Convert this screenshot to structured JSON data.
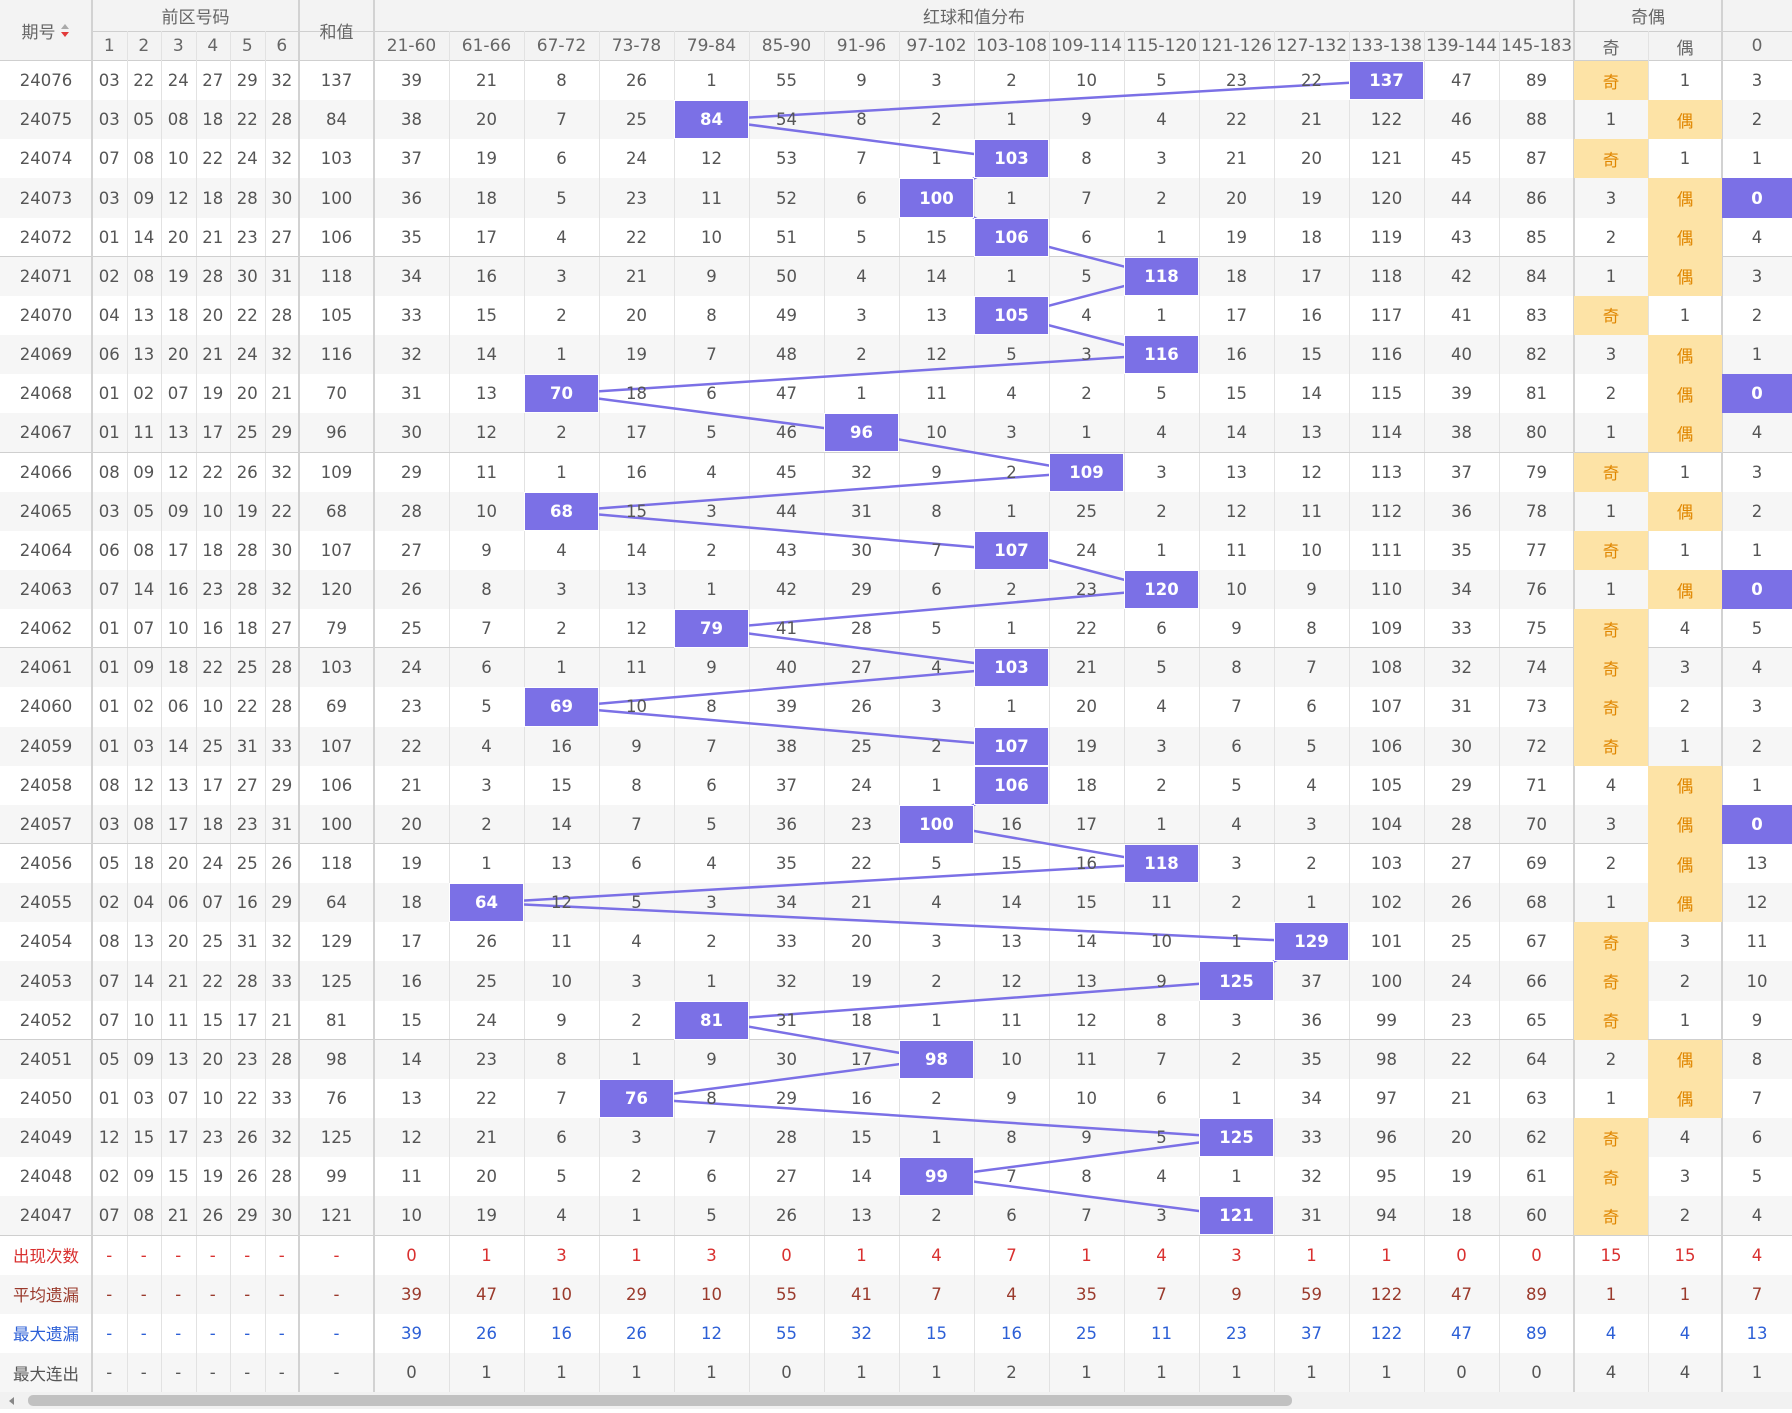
{
  "header": {
    "issue": "期号",
    "front": "前区号码",
    "front_cols": [
      "1",
      "2",
      "3",
      "4",
      "5",
      "6"
    ],
    "sum": "和值",
    "dist": "红球和值分布",
    "ranges": [
      "21-60",
      "61-66",
      "67-72",
      "73-78",
      "79-84",
      "85-90",
      "91-96",
      "97-102",
      "103-108",
      "109-114",
      "115-120",
      "121-126",
      "127-132",
      "133-138",
      "139-144",
      "145-183"
    ],
    "parity": "奇偶",
    "parity_cols": [
      "奇",
      "偶"
    ],
    "last_col": "0"
  },
  "rows": [
    {
      "issue": "24076",
      "balls": [
        "03",
        "22",
        "24",
        "27",
        "29",
        "32"
      ],
      "sum": "137",
      "dist": [
        "39",
        "21",
        "8",
        "26",
        "1",
        "55",
        "9",
        "3",
        "2",
        "10",
        "5",
        "23",
        "22",
        "137",
        "47",
        "89"
      ],
      "parity": [
        "奇",
        "1"
      ],
      "last": "3"
    },
    {
      "issue": "24075",
      "balls": [
        "03",
        "05",
        "08",
        "18",
        "22",
        "28"
      ],
      "sum": "84",
      "dist": [
        "38",
        "20",
        "7",
        "25",
        "84",
        "54",
        "8",
        "2",
        "1",
        "9",
        "4",
        "22",
        "21",
        "122",
        "46",
        "88"
      ],
      "parity": [
        "1",
        "偶"
      ],
      "last": "2"
    },
    {
      "issue": "24074",
      "balls": [
        "07",
        "08",
        "10",
        "22",
        "24",
        "32"
      ],
      "sum": "103",
      "dist": [
        "37",
        "19",
        "6",
        "24",
        "12",
        "53",
        "7",
        "1",
        "103",
        "8",
        "3",
        "21",
        "20",
        "121",
        "45",
        "87"
      ],
      "parity": [
        "奇",
        "1"
      ],
      "last": "1"
    },
    {
      "issue": "24073",
      "balls": [
        "03",
        "09",
        "12",
        "18",
        "28",
        "30"
      ],
      "sum": "100",
      "dist": [
        "36",
        "18",
        "5",
        "23",
        "11",
        "52",
        "6",
        "100",
        "1",
        "7",
        "2",
        "20",
        "19",
        "120",
        "44",
        "86"
      ],
      "parity": [
        "3",
        "偶"
      ],
      "last": "0"
    },
    {
      "issue": "24072",
      "balls": [
        "01",
        "14",
        "20",
        "21",
        "23",
        "27"
      ],
      "sum": "106",
      "dist": [
        "35",
        "17",
        "4",
        "22",
        "10",
        "51",
        "5",
        "15",
        "106",
        "6",
        "1",
        "19",
        "18",
        "119",
        "43",
        "85"
      ],
      "parity": [
        "2",
        "偶"
      ],
      "last": "4"
    },
    {
      "issue": "24071",
      "balls": [
        "02",
        "08",
        "19",
        "28",
        "30",
        "31"
      ],
      "sum": "118",
      "dist": [
        "34",
        "16",
        "3",
        "21",
        "9",
        "50",
        "4",
        "14",
        "1",
        "5",
        "118",
        "18",
        "17",
        "118",
        "42",
        "84"
      ],
      "parity": [
        "1",
        "偶"
      ],
      "last": "3"
    },
    {
      "issue": "24070",
      "balls": [
        "04",
        "13",
        "18",
        "20",
        "22",
        "28"
      ],
      "sum": "105",
      "dist": [
        "33",
        "15",
        "2",
        "20",
        "8",
        "49",
        "3",
        "13",
        "105",
        "4",
        "1",
        "17",
        "16",
        "117",
        "41",
        "83"
      ],
      "parity": [
        "奇",
        "1"
      ],
      "last": "2"
    },
    {
      "issue": "24069",
      "balls": [
        "06",
        "13",
        "20",
        "21",
        "24",
        "32"
      ],
      "sum": "116",
      "dist": [
        "32",
        "14",
        "1",
        "19",
        "7",
        "48",
        "2",
        "12",
        "5",
        "3",
        "116",
        "16",
        "15",
        "116",
        "40",
        "82"
      ],
      "parity": [
        "3",
        "偶"
      ],
      "last": "1"
    },
    {
      "issue": "24068",
      "balls": [
        "01",
        "02",
        "07",
        "19",
        "20",
        "21"
      ],
      "sum": "70",
      "dist": [
        "31",
        "13",
        "70",
        "18",
        "6",
        "47",
        "1",
        "11",
        "4",
        "2",
        "5",
        "15",
        "14",
        "115",
        "39",
        "81"
      ],
      "parity": [
        "2",
        "偶"
      ],
      "last": "0"
    },
    {
      "issue": "24067",
      "balls": [
        "01",
        "11",
        "13",
        "17",
        "25",
        "29"
      ],
      "sum": "96",
      "dist": [
        "30",
        "12",
        "2",
        "17",
        "5",
        "46",
        "96",
        "10",
        "3",
        "1",
        "4",
        "14",
        "13",
        "114",
        "38",
        "80"
      ],
      "parity": [
        "1",
        "偶"
      ],
      "last": "4"
    },
    {
      "issue": "24066",
      "balls": [
        "08",
        "09",
        "12",
        "22",
        "26",
        "32"
      ],
      "sum": "109",
      "dist": [
        "29",
        "11",
        "1",
        "16",
        "4",
        "45",
        "32",
        "9",
        "2",
        "109",
        "3",
        "13",
        "12",
        "113",
        "37",
        "79"
      ],
      "parity": [
        "奇",
        "1"
      ],
      "last": "3"
    },
    {
      "issue": "24065",
      "balls": [
        "03",
        "05",
        "09",
        "10",
        "19",
        "22"
      ],
      "sum": "68",
      "dist": [
        "28",
        "10",
        "68",
        "15",
        "3",
        "44",
        "31",
        "8",
        "1",
        "25",
        "2",
        "12",
        "11",
        "112",
        "36",
        "78"
      ],
      "parity": [
        "1",
        "偶"
      ],
      "last": "2"
    },
    {
      "issue": "24064",
      "balls": [
        "06",
        "08",
        "17",
        "18",
        "28",
        "30"
      ],
      "sum": "107",
      "dist": [
        "27",
        "9",
        "4",
        "14",
        "2",
        "43",
        "30",
        "7",
        "107",
        "24",
        "1",
        "11",
        "10",
        "111",
        "35",
        "77"
      ],
      "parity": [
        "奇",
        "1"
      ],
      "last": "1"
    },
    {
      "issue": "24063",
      "balls": [
        "07",
        "14",
        "16",
        "23",
        "28",
        "32"
      ],
      "sum": "120",
      "dist": [
        "26",
        "8",
        "3",
        "13",
        "1",
        "42",
        "29",
        "6",
        "2",
        "23",
        "120",
        "10",
        "9",
        "110",
        "34",
        "76"
      ],
      "parity": [
        "1",
        "偶"
      ],
      "last": "0"
    },
    {
      "issue": "24062",
      "balls": [
        "01",
        "07",
        "10",
        "16",
        "18",
        "27"
      ],
      "sum": "79",
      "dist": [
        "25",
        "7",
        "2",
        "12",
        "79",
        "41",
        "28",
        "5",
        "1",
        "22",
        "6",
        "9",
        "8",
        "109",
        "33",
        "75"
      ],
      "parity": [
        "奇",
        "4"
      ],
      "last": "5"
    },
    {
      "issue": "24061",
      "balls": [
        "01",
        "09",
        "18",
        "22",
        "25",
        "28"
      ],
      "sum": "103",
      "dist": [
        "24",
        "6",
        "1",
        "11",
        "9",
        "40",
        "27",
        "4",
        "103",
        "21",
        "5",
        "8",
        "7",
        "108",
        "32",
        "74"
      ],
      "parity": [
        "奇",
        "3"
      ],
      "last": "4"
    },
    {
      "issue": "24060",
      "balls": [
        "01",
        "02",
        "06",
        "10",
        "22",
        "28"
      ],
      "sum": "69",
      "dist": [
        "23",
        "5",
        "69",
        "10",
        "8",
        "39",
        "26",
        "3",
        "1",
        "20",
        "4",
        "7",
        "6",
        "107",
        "31",
        "73"
      ],
      "parity": [
        "奇",
        "2"
      ],
      "last": "3"
    },
    {
      "issue": "24059",
      "balls": [
        "01",
        "03",
        "14",
        "25",
        "31",
        "33"
      ],
      "sum": "107",
      "dist": [
        "22",
        "4",
        "16",
        "9",
        "7",
        "38",
        "25",
        "2",
        "107",
        "19",
        "3",
        "6",
        "5",
        "106",
        "30",
        "72"
      ],
      "parity": [
        "奇",
        "1"
      ],
      "last": "2"
    },
    {
      "issue": "24058",
      "balls": [
        "08",
        "12",
        "13",
        "17",
        "27",
        "29"
      ],
      "sum": "106",
      "dist": [
        "21",
        "3",
        "15",
        "8",
        "6",
        "37",
        "24",
        "1",
        "106",
        "18",
        "2",
        "5",
        "4",
        "105",
        "29",
        "71"
      ],
      "parity": [
        "4",
        "偶"
      ],
      "last": "1"
    },
    {
      "issue": "24057",
      "balls": [
        "03",
        "08",
        "17",
        "18",
        "23",
        "31"
      ],
      "sum": "100",
      "dist": [
        "20",
        "2",
        "14",
        "7",
        "5",
        "36",
        "23",
        "100",
        "16",
        "17",
        "1",
        "4",
        "3",
        "104",
        "28",
        "70"
      ],
      "parity": [
        "3",
        "偶"
      ],
      "last": "0"
    },
    {
      "issue": "24056",
      "balls": [
        "05",
        "18",
        "20",
        "24",
        "25",
        "26"
      ],
      "sum": "118",
      "dist": [
        "19",
        "1",
        "13",
        "6",
        "4",
        "35",
        "22",
        "5",
        "15",
        "16",
        "118",
        "3",
        "2",
        "103",
        "27",
        "69"
      ],
      "parity": [
        "2",
        "偶"
      ],
      "last": "13"
    },
    {
      "issue": "24055",
      "balls": [
        "02",
        "04",
        "06",
        "07",
        "16",
        "29"
      ],
      "sum": "64",
      "dist": [
        "18",
        "64",
        "12",
        "5",
        "3",
        "34",
        "21",
        "4",
        "14",
        "15",
        "11",
        "2",
        "1",
        "102",
        "26",
        "68"
      ],
      "parity": [
        "1",
        "偶"
      ],
      "last": "12"
    },
    {
      "issue": "24054",
      "balls": [
        "08",
        "13",
        "20",
        "25",
        "31",
        "32"
      ],
      "sum": "129",
      "dist": [
        "17",
        "26",
        "11",
        "4",
        "2",
        "33",
        "20",
        "3",
        "13",
        "14",
        "10",
        "1",
        "129",
        "101",
        "25",
        "67"
      ],
      "parity": [
        "奇",
        "3"
      ],
      "last": "11"
    },
    {
      "issue": "24053",
      "balls": [
        "07",
        "14",
        "21",
        "22",
        "28",
        "33"
      ],
      "sum": "125",
      "dist": [
        "16",
        "25",
        "10",
        "3",
        "1",
        "32",
        "19",
        "2",
        "12",
        "13",
        "9",
        "125",
        "37",
        "100",
        "24",
        "66"
      ],
      "parity": [
        "奇",
        "2"
      ],
      "last": "10"
    },
    {
      "issue": "24052",
      "balls": [
        "07",
        "10",
        "11",
        "15",
        "17",
        "21"
      ],
      "sum": "81",
      "dist": [
        "15",
        "24",
        "9",
        "2",
        "81",
        "31",
        "18",
        "1",
        "11",
        "12",
        "8",
        "3",
        "36",
        "99",
        "23",
        "65"
      ],
      "parity": [
        "奇",
        "1"
      ],
      "last": "9"
    },
    {
      "issue": "24051",
      "balls": [
        "05",
        "09",
        "13",
        "20",
        "23",
        "28"
      ],
      "sum": "98",
      "dist": [
        "14",
        "23",
        "8",
        "1",
        "9",
        "30",
        "17",
        "98",
        "10",
        "11",
        "7",
        "2",
        "35",
        "98",
        "22",
        "64"
      ],
      "parity": [
        "2",
        "偶"
      ],
      "last": "8"
    },
    {
      "issue": "24050",
      "balls": [
        "01",
        "03",
        "07",
        "10",
        "22",
        "33"
      ],
      "sum": "76",
      "dist": [
        "13",
        "22",
        "7",
        "76",
        "8",
        "29",
        "16",
        "2",
        "9",
        "10",
        "6",
        "1",
        "34",
        "97",
        "21",
        "63"
      ],
      "parity": [
        "1",
        "偶"
      ],
      "last": "7"
    },
    {
      "issue": "24049",
      "balls": [
        "12",
        "15",
        "17",
        "23",
        "26",
        "32"
      ],
      "sum": "125",
      "dist": [
        "12",
        "21",
        "6",
        "3",
        "7",
        "28",
        "15",
        "1",
        "8",
        "9",
        "5",
        "125",
        "33",
        "96",
        "20",
        "62"
      ],
      "parity": [
        "奇",
        "4"
      ],
      "last": "6"
    },
    {
      "issue": "24048",
      "balls": [
        "02",
        "09",
        "15",
        "19",
        "26",
        "28"
      ],
      "sum": "99",
      "dist": [
        "11",
        "20",
        "5",
        "2",
        "6",
        "27",
        "14",
        "99",
        "7",
        "8",
        "4",
        "1",
        "32",
        "95",
        "19",
        "61"
      ],
      "parity": [
        "奇",
        "3"
      ],
      "last": "5"
    },
    {
      "issue": "24047",
      "balls": [
        "07",
        "08",
        "21",
        "26",
        "29",
        "30"
      ],
      "sum": "121",
      "dist": [
        "10",
        "19",
        "4",
        "1",
        "5",
        "26",
        "13",
        "2",
        "6",
        "7",
        "3",
        "121",
        "31",
        "94",
        "18",
        "60"
      ],
      "parity": [
        "奇",
        "2"
      ],
      "last": "4"
    }
  ],
  "stats": [
    {
      "label": "出现次数",
      "balls": [
        "-",
        "-",
        "-",
        "-",
        "-",
        "-"
      ],
      "sum": "-",
      "dist": [
        "0",
        "1",
        "3",
        "1",
        "3",
        "0",
        "1",
        "4",
        "7",
        "1",
        "4",
        "3",
        "1",
        "1",
        "0",
        "0"
      ],
      "parity": [
        "15",
        "15"
      ],
      "last": "4"
    },
    {
      "label": "平均遗漏",
      "balls": [
        "-",
        "-",
        "-",
        "-",
        "-",
        "-"
      ],
      "sum": "-",
      "dist": [
        "39",
        "47",
        "10",
        "29",
        "10",
        "55",
        "41",
        "7",
        "4",
        "35",
        "7",
        "9",
        "59",
        "122",
        "47",
        "89"
      ],
      "parity": [
        "1",
        "1"
      ],
      "last": "7"
    },
    {
      "label": "最大遗漏",
      "balls": [
        "-",
        "-",
        "-",
        "-",
        "-",
        "-"
      ],
      "sum": "-",
      "dist": [
        "39",
        "26",
        "16",
        "26",
        "12",
        "55",
        "32",
        "15",
        "16",
        "25",
        "11",
        "23",
        "37",
        "122",
        "47",
        "89"
      ],
      "parity": [
        "4",
        "4"
      ],
      "last": "13"
    },
    {
      "label": "最大连出",
      "balls": [
        "-",
        "-",
        "-",
        "-",
        "-",
        "-"
      ],
      "sum": "-",
      "dist": [
        "0",
        "1",
        "1",
        "1",
        "1",
        "0",
        "1",
        "1",
        "2",
        "1",
        "1",
        "1",
        "1",
        "1",
        "0",
        "0"
      ],
      "parity": [
        "4",
        "4"
      ],
      "last": "1"
    }
  ]
}
